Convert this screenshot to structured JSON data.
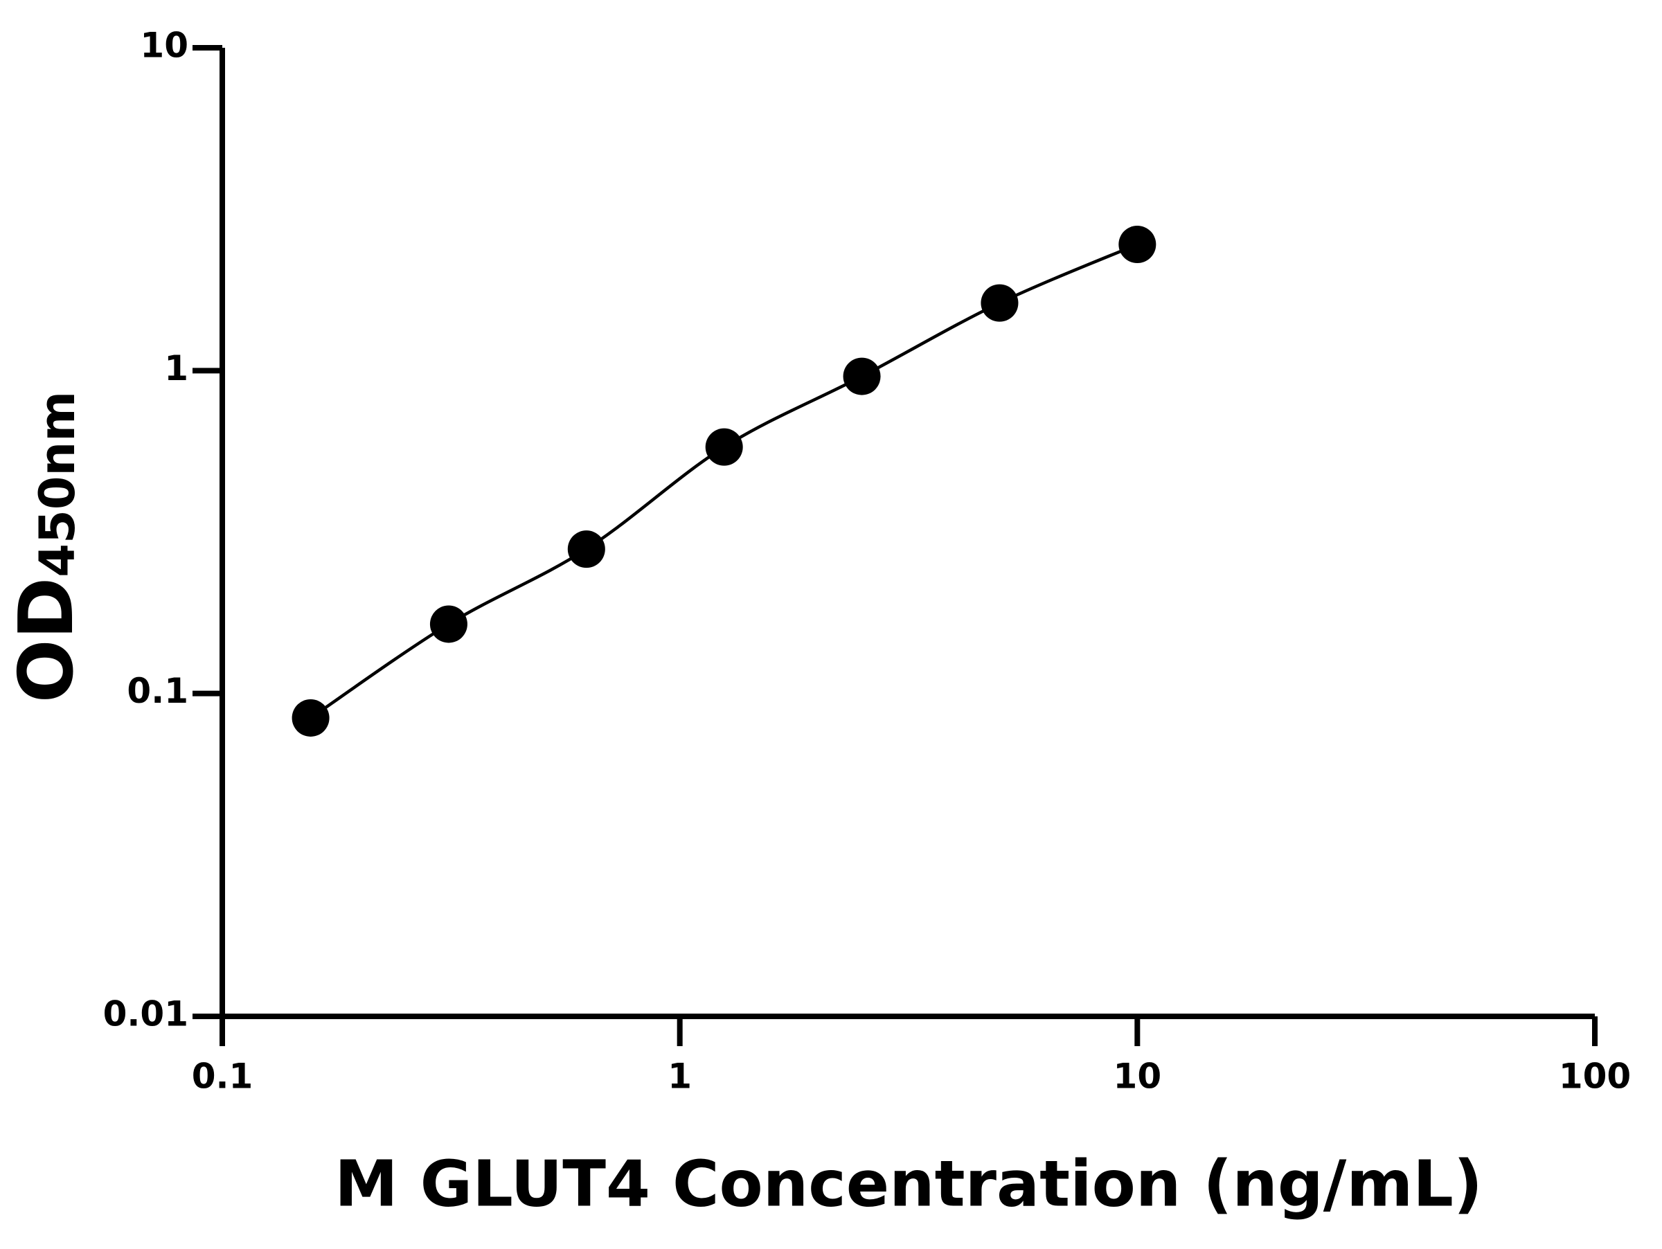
{
  "chart_data": {
    "type": "scatter",
    "xlabel": "M GLUT4 Concentration (ng/mL)",
    "ylabel": "OD",
    "ylabel_sub": "450nm",
    "x": [
      0.156,
      0.3125,
      0.625,
      1.25,
      2.5,
      5,
      10
    ],
    "series": [
      {
        "color": "#000000",
        "values": [
          0.084,
          0.164,
          0.28,
          0.58,
          0.96,
          1.62,
          2.46
        ]
      }
    ],
    "xlim": [
      0.1,
      100
    ],
    "ylim": [
      0.01,
      10
    ],
    "xticks": [
      0.1,
      1,
      10,
      100
    ],
    "yticks": [
      0.01,
      0.1,
      1,
      10
    ],
    "xscale": "log",
    "yscale": "log",
    "fit_curve": true
  }
}
